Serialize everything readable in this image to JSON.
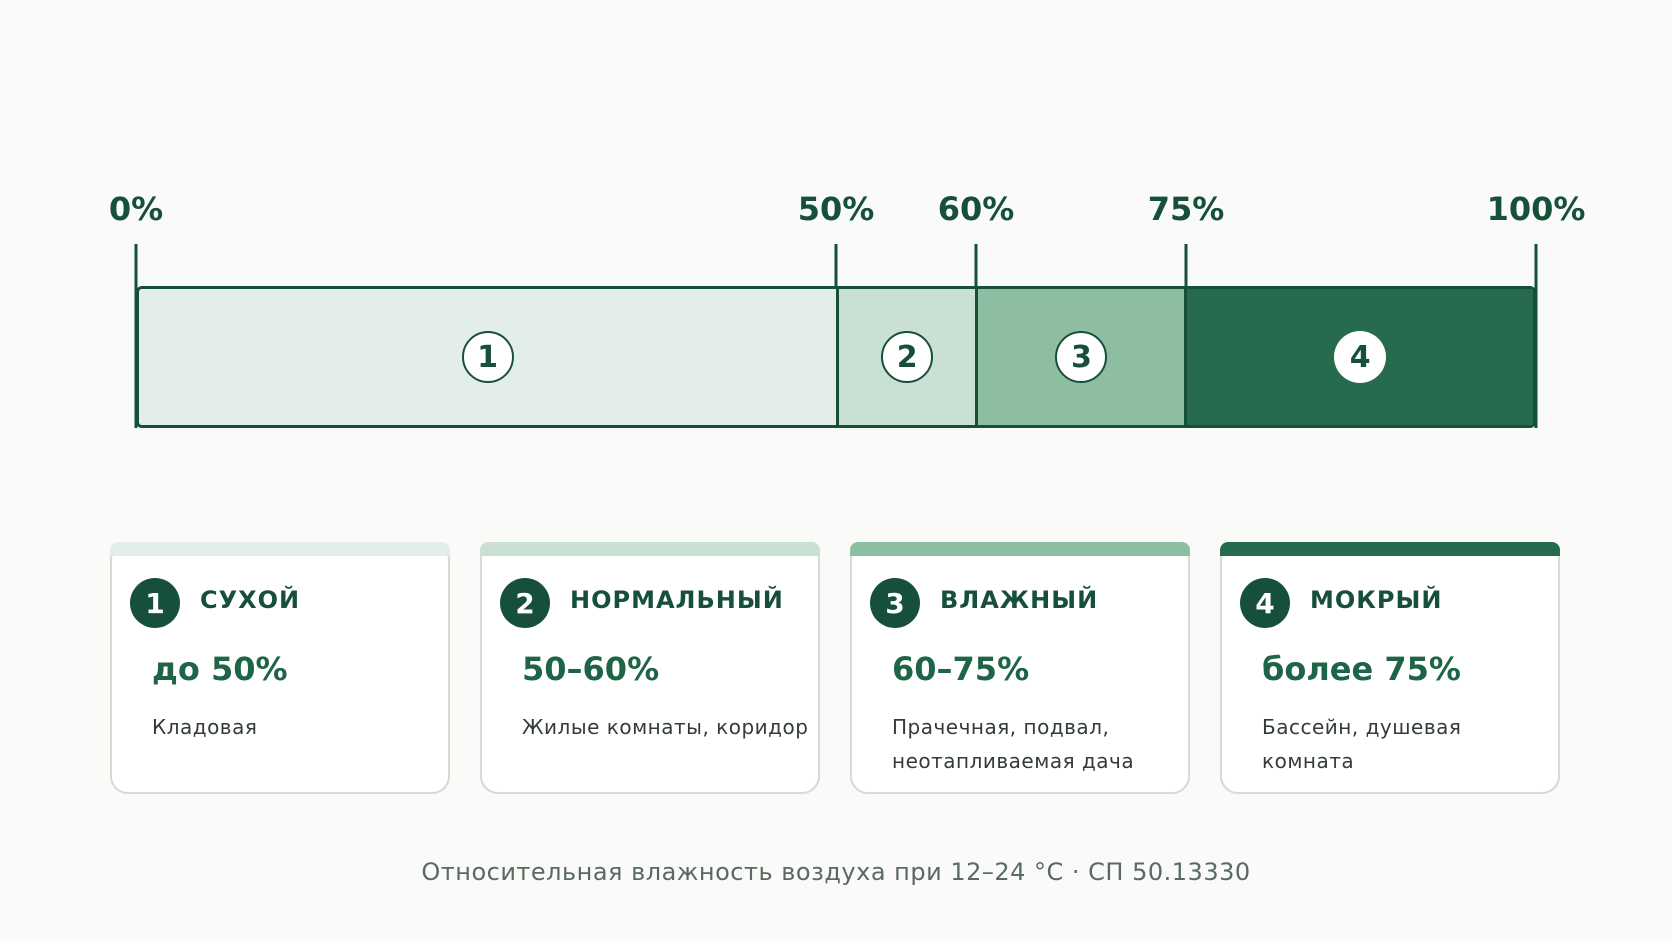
{
  "scale": {
    "ticks": [
      {
        "value": 0,
        "label": "0%"
      },
      {
        "value": 50,
        "label": "50%"
      },
      {
        "value": 60,
        "label": "60%"
      },
      {
        "value": 75,
        "label": "75%"
      },
      {
        "value": 100,
        "label": "100%"
      }
    ],
    "segments": [
      {
        "from": 0,
        "to": 50,
        "num": "1",
        "color": "#e4eee8"
      },
      {
        "from": 50,
        "to": 60,
        "num": "2",
        "color": "#c9e0d2"
      },
      {
        "from": 60,
        "to": 75,
        "num": "3",
        "color": "#8ebea1"
      },
      {
        "from": 75,
        "to": 100,
        "num": "4",
        "color": "#266b4d"
      }
    ]
  },
  "cards": [
    {
      "num": "1",
      "title": "СУХОЙ",
      "range": "до 50%",
      "desc": "Кладовая",
      "color": "#e4eee8"
    },
    {
      "num": "2",
      "title": "НОРМАЛЬНЫЙ",
      "range": "50–60%",
      "desc": "Жилые комнаты, коридор",
      "color": "#c9e0d2"
    },
    {
      "num": "3",
      "title": "ВЛАЖНЫЙ",
      "range": "60–75%",
      "desc": "Прачечная, подвал, неотапливаемая дача",
      "color": "#8ebea1"
    },
    {
      "num": "4",
      "title": "МОКРЫЙ",
      "range": "более 75%",
      "desc": "Бассейн, душевая комната",
      "color": "#266b4d"
    }
  ],
  "caption": "Относительная влажность воздуха при 12–24 °C · СП 50.13330"
}
